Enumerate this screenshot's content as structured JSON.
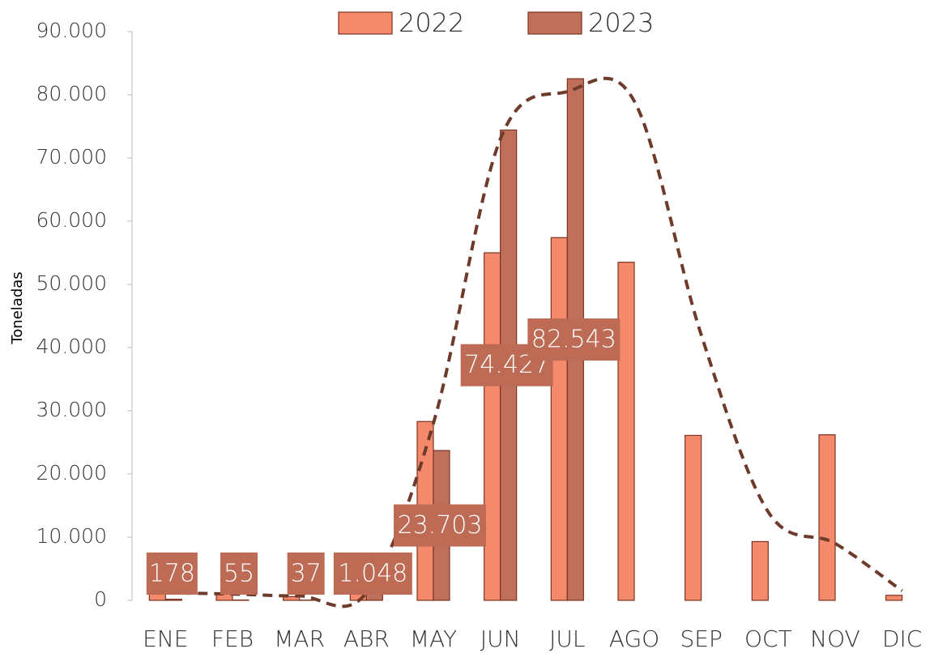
{
  "chart_data": {
    "type": "bar",
    "y_label": "Toneladas",
    "categories": [
      "ENE",
      "FEB",
      "MAR",
      "ABR",
      "MAY",
      "JUN",
      "JUL",
      "AGO",
      "SEP",
      "OCT",
      "NOV",
      "DIC"
    ],
    "series": [
      {
        "name": "2022",
        "color": "#f4896b",
        "values": [
          1200,
          1000,
          600,
          1500,
          28300,
          55000,
          57400,
          53500,
          26100,
          9300,
          26200,
          800
        ]
      },
      {
        "name": "2023",
        "color": "#c0705a",
        "values": [
          178,
          55,
          37,
          1048,
          23703,
          74427,
          82543,
          null,
          null,
          null,
          null,
          null
        ],
        "value_labels": [
          "178",
          "55",
          "37",
          "1.048",
          "23.703",
          "74.427",
          "82.543",
          null,
          null,
          null,
          null,
          null
        ]
      }
    ],
    "trend": {
      "color": "#6e3b2b",
      "values": [
        1200,
        1000,
        700,
        1200,
        28000,
        73000,
        80500,
        79000,
        42000,
        14000,
        9000,
        1500
      ]
    },
    "ylim": [
      0,
      90000
    ],
    "yticks": [
      0,
      {
        "value": 10000,
        "label": "10.000"
      },
      {
        "value": 20000,
        "label": "20.000"
      },
      {
        "value": 30000,
        "label": "30.000"
      },
      {
        "value": 40000,
        "label": "40.000"
      },
      {
        "value": 50000,
        "label": "50.000"
      },
      {
        "value": 60000,
        "label": "60.000"
      },
      {
        "value": 70000,
        "label": "70.000"
      },
      {
        "value": 80000,
        "label": "80.000"
      },
      {
        "value": 90000,
        "label": "90.000"
      }
    ],
    "grid": false,
    "legend": "top"
  }
}
